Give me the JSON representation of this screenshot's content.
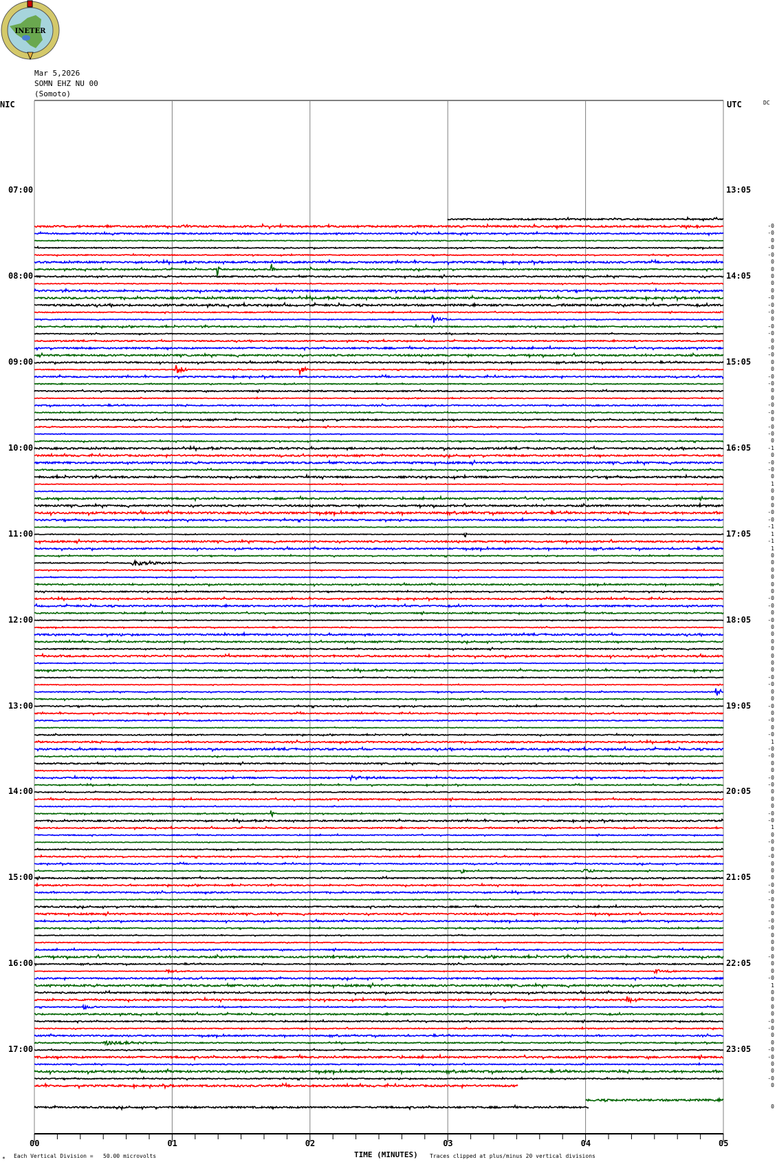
{
  "logo": {
    "text": "INETER",
    "colors": {
      "ring": "#d4c96a",
      "sea": "#a6d4dc",
      "land": "#6aa84f",
      "lake": "#4a7fd0"
    }
  },
  "header": {
    "date": "Mar 5,2026",
    "station": "SOMN EHZ NU 00",
    "location": "(Somoto)"
  },
  "left_timezone": "NIC",
  "right_timezone": "UTC",
  "dc_label": "DC",
  "left_hour_labels": [
    "07:00",
    "08:00",
    "09:00",
    "10:00",
    "11:00",
    "12:00",
    "13:00",
    "14:00",
    "15:00",
    "16:00",
    "17:00"
  ],
  "right_hour_labels": [
    "13:05",
    "14:05",
    "15:05",
    "16:05",
    "17:05",
    "18:05",
    "19:05",
    "20:05",
    "21:05",
    "22:05",
    "23:05"
  ],
  "footer": {
    "scale_note": "Each Vertical Division =   50.00 microvolts",
    "xlabel": "TIME (MINUTES)",
    "clip_note": "Traces clipped at plus/minus 20 vertical divisions"
  },
  "chart_data": {
    "type": "line",
    "title": "",
    "xlabel": "TIME (MINUTES)",
    "x_tick_labels": [
      "00",
      "01",
      "02",
      "03",
      "04",
      "05"
    ],
    "xlim": [
      0,
      5
    ],
    "minutes_per_row": 5,
    "start_local": "07:00",
    "trace_colors": [
      "#000000",
      "#ff0000",
      "#0000ff",
      "#006400"
    ],
    "grid_color": "#808080",
    "partial_rows": [
      {
        "row": "07:20",
        "from_minute": 3.0,
        "to_minute": 5.0
      },
      {
        "row": "17:25",
        "from_minute": 0.0,
        "to_minute": 3.51
      },
      {
        "row": "17:35",
        "from_minute": 4.0,
        "to_minute": 5.0
      },
      {
        "row": "17:40",
        "from_minute": 0.0,
        "to_minute": 4.02
      }
    ],
    "full_rows_range": [
      "07:25",
      "17:20"
    ],
    "dc_offsets_first_row": "07:25",
    "dc_offsets": [
      "-0",
      "-0",
      "0",
      "-0",
      "-0",
      "0",
      "0",
      "0",
      "0",
      "0",
      "-0",
      "-0",
      "-0",
      "0",
      "-0",
      "-0",
      "0",
      "-0",
      "-0",
      "0",
      "0",
      "-0",
      "-0",
      "0",
      "0",
      "-0",
      "-0",
      "0",
      "-0",
      "-0",
      "0",
      "-1",
      "0",
      "-0",
      "-0",
      "0",
      "1",
      "0",
      "0",
      "0",
      "-0",
      "-0",
      "-1",
      "1",
      "-1",
      "1",
      "0",
      "0",
      "0",
      "0",
      "0",
      "0",
      "-0",
      "-0",
      "0",
      "-0",
      "0",
      "0",
      "0",
      "0",
      "0",
      "0",
      "0",
      "-0",
      "-0",
      "0",
      "0",
      "-0",
      "0",
      "-0",
      "0",
      "-0",
      "1",
      "-0",
      "-0",
      "0",
      "0",
      "-0",
      "-0",
      "0",
      "0",
      "0",
      "-0",
      "-0",
      "1",
      "0",
      "-0",
      "0",
      "-0",
      "0",
      "0",
      "0",
      "-0",
      "-0",
      "-0",
      "0",
      "0",
      "-0",
      "-0",
      "0",
      "0",
      "0",
      "-0",
      "0",
      "0",
      "-0",
      "1",
      "0",
      "0",
      "0",
      "0",
      "-0",
      "-0",
      "0",
      "0",
      "-0",
      "-0",
      "0",
      "0",
      "-0",
      "0"
    ],
    "dc_offset_last_row": {
      "row": "17:40",
      "value": "0"
    },
    "events": [
      {
        "row": "07:55",
        "minute": 1.33,
        "amplitude": 8
      },
      {
        "row": "07:55",
        "minute": 1.72,
        "amplitude": 8
      },
      {
        "row": "07:55",
        "minute": 2.0,
        "amplitude": 3
      },
      {
        "row": "08:30",
        "minute": 2.88,
        "amplitude": 7,
        "duration": 0.12
      },
      {
        "row": "09:05",
        "minute": 1.03,
        "amplitude": 12,
        "duration": 0.08
      },
      {
        "row": "09:05",
        "minute": 1.93,
        "amplitude": 7,
        "duration": 0.06
      },
      {
        "row": "10:00",
        "minute": 1.83,
        "amplitude": 4
      },
      {
        "row": "11:00",
        "minute": 3.12,
        "amplitude": 7
      },
      {
        "row": "11:20",
        "minute": 0.7,
        "amplitude": 4,
        "duration": 0.45
      },
      {
        "row": "12:50",
        "minute": 4.95,
        "amplitude": 8,
        "duration": 0.05
      },
      {
        "row": "13:50",
        "minute": 2.3,
        "amplitude": 3,
        "duration": 0.25
      },
      {
        "row": "14:15",
        "minute": 1.72,
        "amplitude": 6
      },
      {
        "row": "14:55",
        "minute": 3.1,
        "amplitude": 3,
        "duration": 0.1
      },
      {
        "row": "14:55",
        "minute": 3.98,
        "amplitude": 4,
        "duration": 0.15
      },
      {
        "row": "16:05",
        "minute": 0.95,
        "amplitude": 3,
        "duration": 0.2
      },
      {
        "row": "16:05",
        "minute": 4.5,
        "amplitude": 3,
        "duration": 0.25
      },
      {
        "row": "16:30",
        "minute": 0.35,
        "amplitude": 4,
        "duration": 0.1
      },
      {
        "row": "16:25",
        "minute": 4.3,
        "amplitude": 4,
        "duration": 0.12
      },
      {
        "row": "16:55",
        "minute": 0.5,
        "amplitude": 3,
        "duration": 0.45
      }
    ]
  }
}
